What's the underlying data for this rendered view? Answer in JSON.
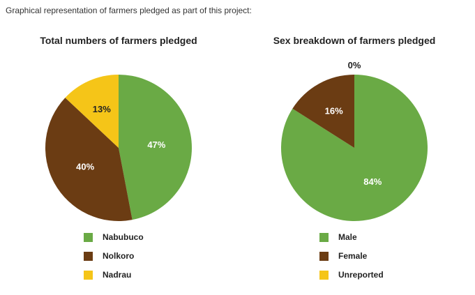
{
  "intro_text": "Graphical representation of farmers pledged as part of this project:",
  "chart_data": [
    {
      "type": "pie",
      "title": "Total numbers of farmers pledged",
      "slices": [
        {
          "label": "Nabubuco",
          "value": 47,
          "display": "47%",
          "color": "#6aaa45",
          "text_color": "#ffffff"
        },
        {
          "label": "Nolkoro",
          "value": 40,
          "display": "40%",
          "color": "#6b3c13",
          "text_color": "#ffffff"
        },
        {
          "label": "Nadrau",
          "value": 13,
          "display": "13%",
          "color": "#f5c518",
          "text_color": "#222222"
        }
      ]
    },
    {
      "type": "pie",
      "title": "Sex breakdown of farmers pledged",
      "slices": [
        {
          "label": "Male",
          "value": 84,
          "display": "84%",
          "color": "#6aaa45",
          "text_color": "#ffffff"
        },
        {
          "label": "Female",
          "value": 16,
          "display": "16%",
          "color": "#6b3c13",
          "text_color": "#ffffff"
        },
        {
          "label": "Unreported",
          "value": 0,
          "display": "0%",
          "color": "#f5c518",
          "text_color": "#222222"
        }
      ]
    }
  ]
}
